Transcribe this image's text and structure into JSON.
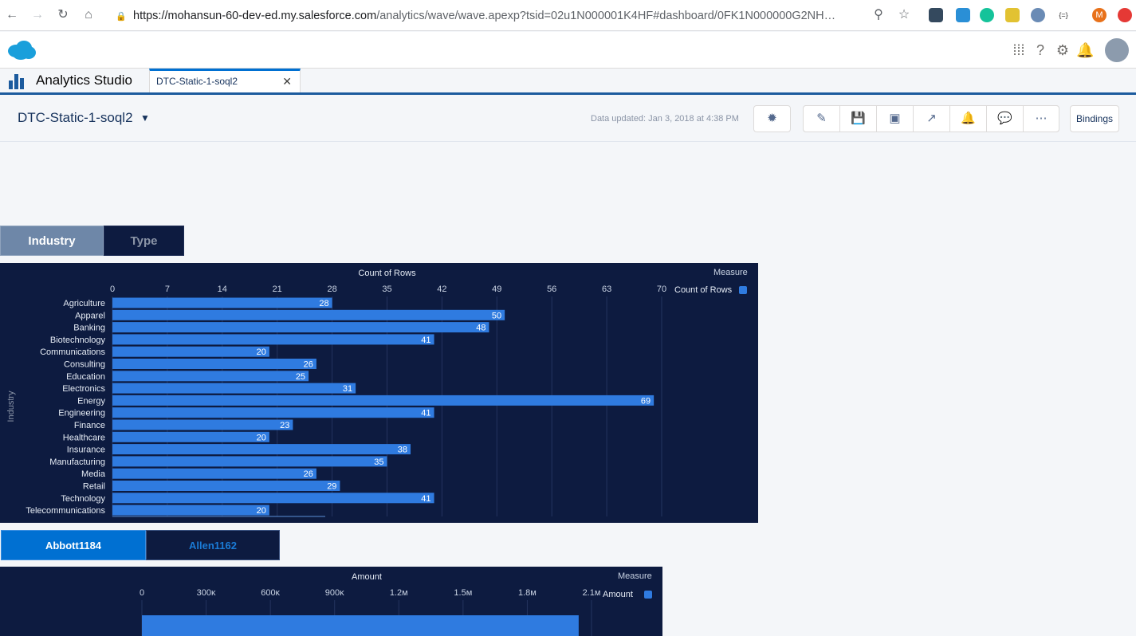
{
  "browser": {
    "url_host": "https://mohansun-60-dev-ed.my.salesforce.com",
    "url_path": "/analytics/wave/wave.apexp?tsid=02u1N000001K4HF#dashboard/0FK1N000000G2NH…",
    "profile_initial": "M"
  },
  "app": {
    "name": "Analytics Studio",
    "tab_label": "DTC-Static-1-soql2"
  },
  "dashboard": {
    "title": "DTC-Static-1-soql2",
    "updated": "Data updated: Jan 3, 2018 at 4:38 PM",
    "bindings_label": "Bindings"
  },
  "toggle1": {
    "items": [
      "Industry",
      "Type"
    ],
    "selected": 0
  },
  "toggle2": {
    "items": [
      "Abbott1184",
      "Allen1162"
    ],
    "selected": 0
  },
  "chart1_labels": {
    "measure_header": "Measure",
    "legend_item": "Count of Rows"
  },
  "chart2_labels": {
    "measure_header": "Measure",
    "legend_item": "Amount"
  },
  "chart_data": [
    {
      "type": "bar",
      "orientation": "horizontal",
      "title": "Count of Rows",
      "ylabel": "Industry",
      "xlim": [
        0,
        70
      ],
      "x_ticks": [
        "0",
        "7",
        "14",
        "21",
        "28",
        "35",
        "42",
        "49",
        "56",
        "63",
        "70"
      ],
      "categories": [
        "Agriculture",
        "Apparel",
        "Banking",
        "Biotechnology",
        "Communications",
        "Consulting",
        "Education",
        "Electronics",
        "Energy",
        "Engineering",
        "Finance",
        "Healthcare",
        "Insurance",
        "Manufacturing",
        "Media",
        "Retail",
        "Technology",
        "Telecommunications"
      ],
      "values": [
        28,
        50,
        48,
        41,
        20,
        26,
        25,
        31,
        69,
        41,
        23,
        20,
        38,
        35,
        26,
        29,
        41,
        20
      ],
      "legend": "top-right",
      "colors": {
        "bar": "#2f7be0",
        "background": "#0d1b40"
      }
    },
    {
      "type": "bar",
      "orientation": "horizontal",
      "title": "Amount",
      "xlim": [
        0,
        2100000
      ],
      "x_ticks": [
        "0",
        "300κ",
        "600κ",
        "900κ",
        "1.2м",
        "1.5м",
        "1.8м",
        "2.1м"
      ],
      "categories": [
        ""
      ],
      "values": [
        2040000
      ],
      "legend": "top-right",
      "colors": {
        "bar": "#2f7be0",
        "background": "#0d1b40"
      }
    }
  ]
}
